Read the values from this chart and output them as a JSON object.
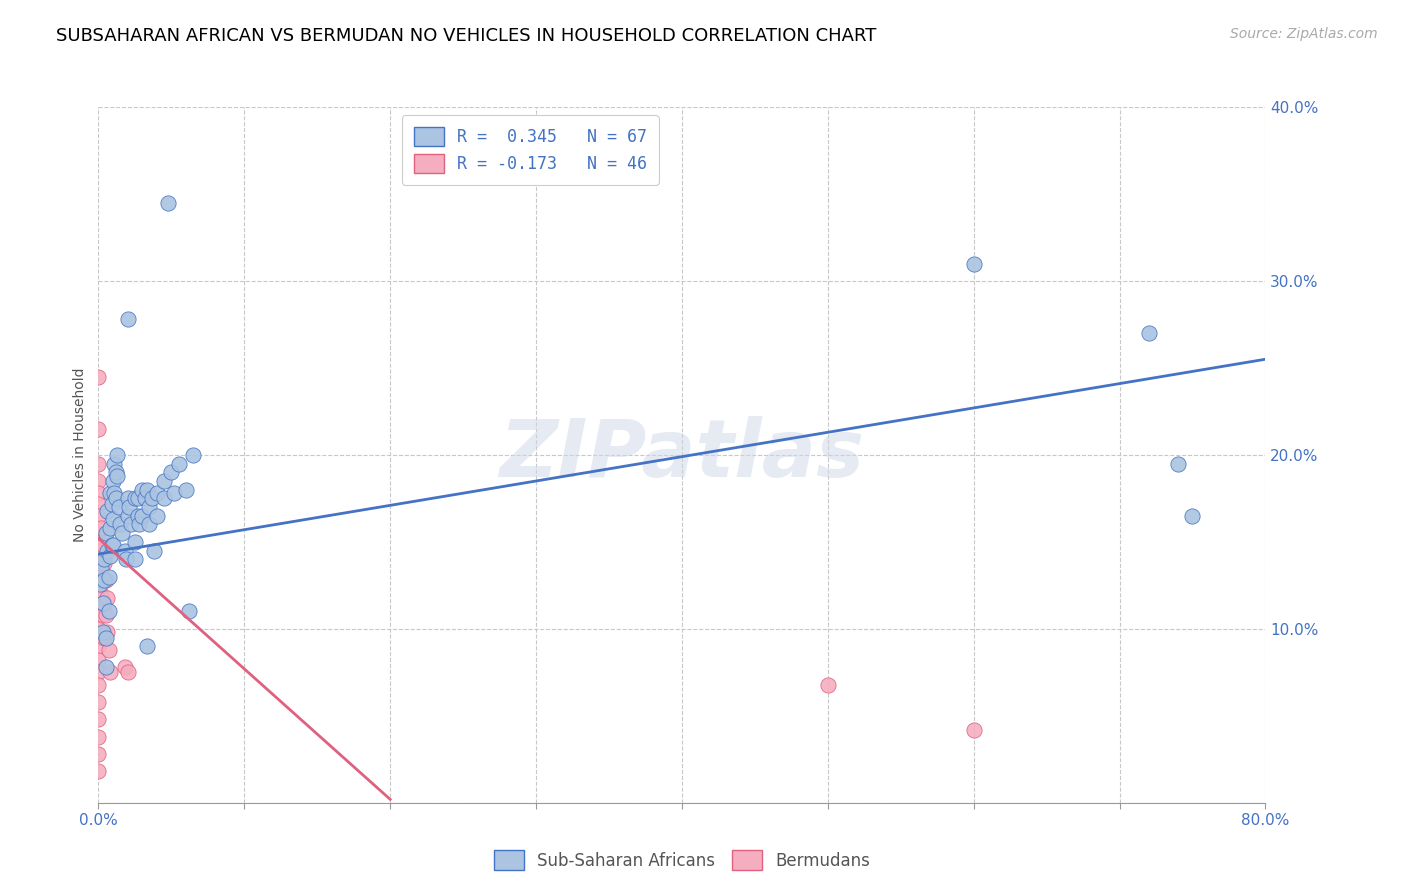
{
  "title": "SUBSAHARAN AFRICAN VS BERMUDAN NO VEHICLES IN HOUSEHOLD CORRELATION CHART",
  "source": "Source: ZipAtlas.com",
  "ylabel": "No Vehicles in Household",
  "watermark": "ZIPatlas",
  "xlim": [
    0.0,
    0.8
  ],
  "ylim": [
    0.0,
    0.4
  ],
  "xticks": [
    0.0,
    0.1,
    0.2,
    0.3,
    0.4,
    0.5,
    0.6,
    0.7,
    0.8
  ],
  "xtick_labels_show": [
    true,
    false,
    false,
    false,
    false,
    false,
    false,
    false,
    true
  ],
  "xticklabels": [
    "0.0%",
    "",
    "",
    "",
    "",
    "",
    "",
    "",
    "80.0%"
  ],
  "yticks": [
    0.0,
    0.1,
    0.2,
    0.3,
    0.4
  ],
  "yticklabels": [
    "",
    "10.0%",
    "20.0%",
    "30.0%",
    "40.0%"
  ],
  "blue_R": 0.345,
  "blue_N": 67,
  "pink_R": -0.173,
  "pink_N": 46,
  "blue_label": "Sub-Saharan Africans",
  "pink_label": "Bermudans",
  "blue_color": "#aac4e2",
  "pink_color": "#f5aec0",
  "blue_line_color": "#4472c4",
  "pink_line_color": "#e06080",
  "title_fontsize": 13,
  "source_fontsize": 10,
  "axis_label_fontsize": 10,
  "tick_fontsize": 11,
  "legend_fontsize": 12,
  "blue_scatter": [
    [
      0.001,
      0.126
    ],
    [
      0.002,
      0.135
    ],
    [
      0.003,
      0.115
    ],
    [
      0.003,
      0.098
    ],
    [
      0.004,
      0.14
    ],
    [
      0.004,
      0.128
    ],
    [
      0.005,
      0.155
    ],
    [
      0.005,
      0.095
    ],
    [
      0.005,
      0.078
    ],
    [
      0.006,
      0.168
    ],
    [
      0.006,
      0.145
    ],
    [
      0.007,
      0.13
    ],
    [
      0.007,
      0.11
    ],
    [
      0.008,
      0.178
    ],
    [
      0.008,
      0.158
    ],
    [
      0.008,
      0.142
    ],
    [
      0.009,
      0.172
    ],
    [
      0.009,
      0.148
    ],
    [
      0.01,
      0.185
    ],
    [
      0.01,
      0.163
    ],
    [
      0.01,
      0.148
    ],
    [
      0.011,
      0.195
    ],
    [
      0.011,
      0.178
    ],
    [
      0.012,
      0.19
    ],
    [
      0.012,
      0.175
    ],
    [
      0.013,
      0.2
    ],
    [
      0.013,
      0.188
    ],
    [
      0.014,
      0.17
    ],
    [
      0.015,
      0.16
    ],
    [
      0.016,
      0.155
    ],
    [
      0.018,
      0.145
    ],
    [
      0.019,
      0.14
    ],
    [
      0.02,
      0.175
    ],
    [
      0.02,
      0.165
    ],
    [
      0.021,
      0.17
    ],
    [
      0.022,
      0.16
    ],
    [
      0.025,
      0.175
    ],
    [
      0.025,
      0.15
    ],
    [
      0.025,
      0.14
    ],
    [
      0.027,
      0.175
    ],
    [
      0.027,
      0.165
    ],
    [
      0.028,
      0.16
    ],
    [
      0.03,
      0.18
    ],
    [
      0.03,
      0.165
    ],
    [
      0.032,
      0.175
    ],
    [
      0.033,
      0.09
    ],
    [
      0.033,
      0.18
    ],
    [
      0.035,
      0.17
    ],
    [
      0.035,
      0.16
    ],
    [
      0.037,
      0.175
    ],
    [
      0.038,
      0.145
    ],
    [
      0.04,
      0.165
    ],
    [
      0.04,
      0.178
    ],
    [
      0.045,
      0.185
    ],
    [
      0.045,
      0.175
    ],
    [
      0.05,
      0.19
    ],
    [
      0.052,
      0.178
    ],
    [
      0.055,
      0.195
    ],
    [
      0.06,
      0.18
    ],
    [
      0.062,
      0.11
    ],
    [
      0.065,
      0.2
    ],
    [
      0.048,
      0.345
    ],
    [
      0.02,
      0.278
    ],
    [
      0.6,
      0.31
    ],
    [
      0.72,
      0.27
    ],
    [
      0.74,
      0.195
    ],
    [
      0.75,
      0.165
    ]
  ],
  "pink_scatter": [
    [
      0.0,
      0.245
    ],
    [
      0.0,
      0.215
    ],
    [
      0.0,
      0.195
    ],
    [
      0.0,
      0.185
    ],
    [
      0.0,
      0.178
    ],
    [
      0.0,
      0.172
    ],
    [
      0.0,
      0.165
    ],
    [
      0.0,
      0.155
    ],
    [
      0.0,
      0.148
    ],
    [
      0.0,
      0.142
    ],
    [
      0.0,
      0.135
    ],
    [
      0.0,
      0.125
    ],
    [
      0.0,
      0.118
    ],
    [
      0.0,
      0.11
    ],
    [
      0.0,
      0.1
    ],
    [
      0.0,
      0.09
    ],
    [
      0.0,
      0.082
    ],
    [
      0.0,
      0.075
    ],
    [
      0.0,
      0.068
    ],
    [
      0.0,
      0.058
    ],
    [
      0.0,
      0.048
    ],
    [
      0.0,
      0.038
    ],
    [
      0.0,
      0.028
    ],
    [
      0.0,
      0.018
    ],
    [
      0.001,
      0.145
    ],
    [
      0.001,
      0.132
    ],
    [
      0.001,
      0.118
    ],
    [
      0.002,
      0.158
    ],
    [
      0.002,
      0.138
    ],
    [
      0.002,
      0.12
    ],
    [
      0.003,
      0.148
    ],
    [
      0.003,
      0.128
    ],
    [
      0.003,
      0.108
    ],
    [
      0.004,
      0.138
    ],
    [
      0.004,
      0.115
    ],
    [
      0.004,
      0.095
    ],
    [
      0.005,
      0.128
    ],
    [
      0.005,
      0.108
    ],
    [
      0.006,
      0.118
    ],
    [
      0.006,
      0.098
    ],
    [
      0.007,
      0.088
    ],
    [
      0.008,
      0.075
    ],
    [
      0.018,
      0.078
    ],
    [
      0.02,
      0.075
    ],
    [
      0.5,
      0.068
    ],
    [
      0.6,
      0.042
    ]
  ],
  "blue_line": [
    [
      0.0,
      0.143
    ],
    [
      0.8,
      0.255
    ]
  ],
  "pink_line": [
    [
      0.0,
      0.152
    ],
    [
      0.2,
      0.002
    ]
  ]
}
